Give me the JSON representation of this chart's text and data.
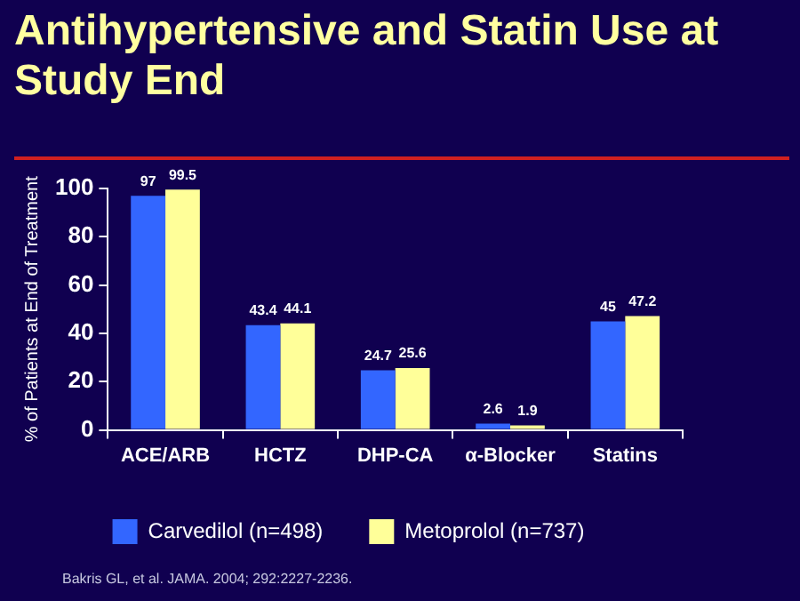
{
  "chart_data": {
    "type": "bar",
    "title": "Antihypertensive and Statin Use at Study End",
    "ylabel": "% of Patients at End of Treatment",
    "categories": [
      "ACE/ARB",
      "HCTZ",
      "DHP-CA",
      "α-Blocker",
      "Statins"
    ],
    "series": [
      {
        "name": "Carvedilol (n=498)",
        "color": "#3366ff",
        "values": [
          97,
          43.4,
          24.7,
          2.6,
          45
        ]
      },
      {
        "name": "Metoprolol (n=737)",
        "color": "#ffff99",
        "values": [
          99.5,
          44.1,
          25.6,
          1.9,
          47.2
        ]
      }
    ],
    "ylim": [
      0,
      100
    ],
    "yticks": [
      0,
      20,
      40,
      60,
      80,
      100
    ],
    "grid": false,
    "legend": "bottom",
    "data_labels": true,
    "annotations": [
      "Bakris GL, et al. JAMA. 2004; 292:2227-2236."
    ]
  }
}
